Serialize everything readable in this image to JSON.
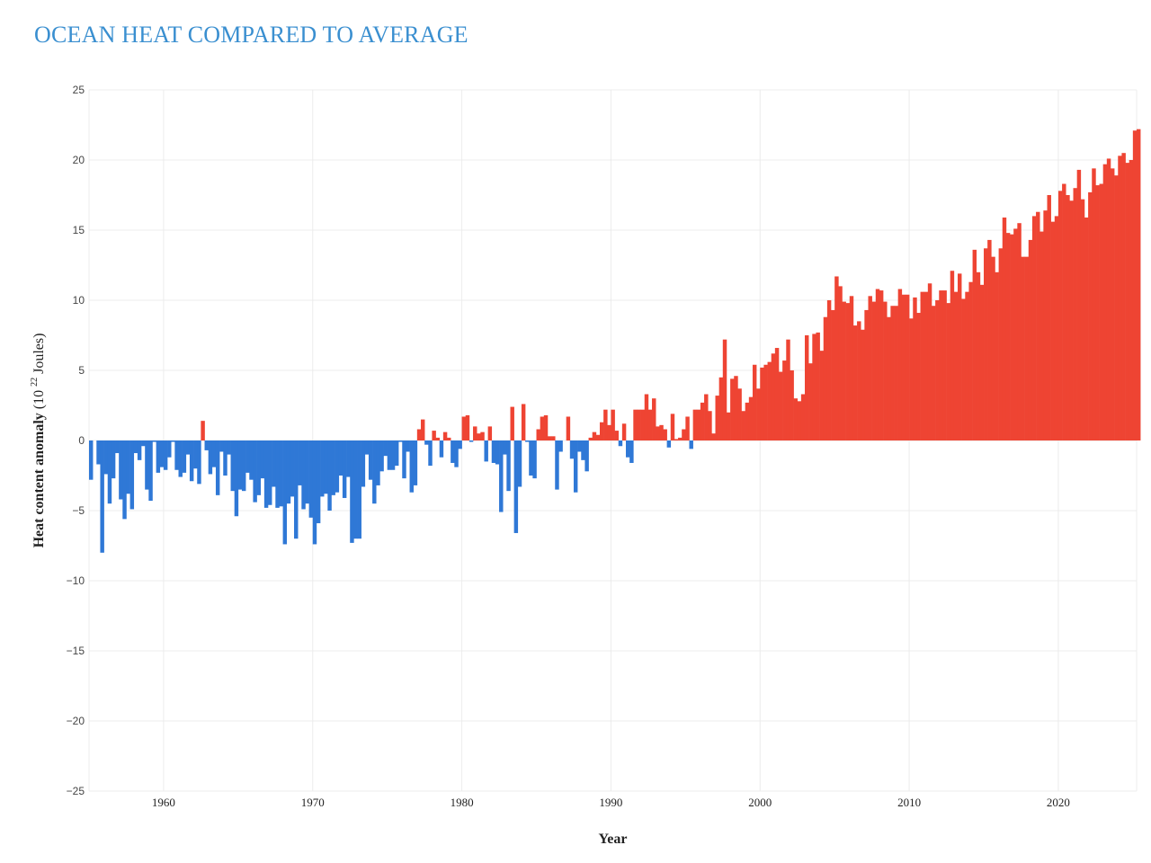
{
  "title": "OCEAN HEAT COMPARED TO AVERAGE",
  "chart_data": {
    "type": "bar",
    "title": "OCEAN HEAT COMPARED TO AVERAGE",
    "xlabel": "Year",
    "ylabel_bold": "Heat content anomaly",
    "ylabel_rest_prefix": "(10",
    "ylabel_superscript": "22",
    "ylabel_rest_suffix": " Joules)",
    "xlim": [
      1955.0,
      2025.25
    ],
    "ylim": [
      -25,
      25
    ],
    "yticks": [
      25,
      20,
      15,
      10,
      5,
      0,
      -5,
      -10,
      -15,
      -20,
      -25
    ],
    "ytick_labels": [
      "25",
      "20",
      "15",
      "10",
      "5",
      "0",
      "−5",
      "−10",
      "−15",
      "−20",
      "−25"
    ],
    "xticks": [
      1960,
      1970,
      1980,
      1990,
      2000,
      2010,
      2020
    ],
    "xtick_labels": [
      "1960",
      "1970",
      "1980",
      "1990",
      "2000",
      "2010",
      "2020"
    ],
    "grid": true,
    "colors": {
      "positive": "#ee4433",
      "negative": "#2f78d6",
      "title": "#3a8fd0",
      "grid": "#ececec"
    },
    "x_start": 1955.0,
    "x_step": 0.25,
    "values": [
      -2.8,
      0.0,
      -1.7,
      -8.0,
      -2.4,
      -4.5,
      -2.7,
      -0.9,
      -4.2,
      -5.6,
      -3.8,
      -4.9,
      -0.9,
      -1.4,
      -0.4,
      -3.5,
      -4.3,
      -0.1,
      -2.3,
      -1.9,
      -2.1,
      -1.2,
      -0.1,
      -2.1,
      -2.6,
      -2.3,
      -1.0,
      -2.9,
      -2.0,
      -3.1,
      1.4,
      -0.7,
      -2.4,
      -1.9,
      -3.9,
      -0.8,
      -2.5,
      -1.0,
      -3.6,
      -5.4,
      -3.5,
      -3.6,
      -2.3,
      -2.8,
      -4.4,
      -3.9,
      -2.7,
      -4.8,
      -4.6,
      -3.3,
      -4.8,
      -4.7,
      -7.4,
      -4.5,
      -4.0,
      -7.0,
      -3.2,
      -4.9,
      -4.5,
      -5.5,
      -7.4,
      -5.9,
      -4.0,
      -3.8,
      -5.0,
      -3.9,
      -3.7,
      -2.5,
      -4.1,
      -2.6,
      -7.3,
      -7.0,
      -7.0,
      -3.3,
      -1.0,
      -2.8,
      -4.5,
      -3.2,
      -2.2,
      -1.1,
      -2.1,
      -2.1,
      -1.8,
      -0.1,
      -2.7,
      -0.8,
      -3.7,
      -3.2,
      0.8,
      1.5,
      -0.3,
      -1.8,
      0.7,
      0.2,
      -1.2,
      0.6,
      0.2,
      -1.6,
      -1.9,
      -0.6,
      1.7,
      1.8,
      -0.1,
      1.0,
      0.5,
      0.6,
      -1.5,
      1.0,
      -1.6,
      -1.7,
      -5.1,
      -1.0,
      -3.6,
      2.4,
      -6.6,
      -3.3,
      2.6,
      -0.1,
      -2.5,
      -2.7,
      0.8,
      1.7,
      1.8,
      0.3,
      0.3,
      -3.5,
      -0.8,
      0.0,
      1.7,
      -1.3,
      -3.7,
      -0.8,
      -1.4,
      -2.2,
      0.2,
      0.6,
      0.4,
      1.3,
      2.2,
      1.1,
      2.2,
      0.7,
      -0.4,
      1.2,
      -1.2,
      -1.6,
      2.2,
      2.2,
      2.2,
      3.3,
      2.2,
      3.0,
      1.0,
      1.1,
      0.8,
      -0.5,
      1.9,
      0.1,
      0.2,
      0.8,
      1.7,
      -0.6,
      2.2,
      2.2,
      2.7,
      3.3,
      2.1,
      0.5,
      3.2,
      4.5,
      7.2,
      2.0,
      4.4,
      4.6,
      3.7,
      2.1,
      2.7,
      3.1,
      5.4,
      3.7,
      5.2,
      5.4,
      5.6,
      6.2,
      6.6,
      4.9,
      5.7,
      7.2,
      5.0,
      3.0,
      2.8,
      3.3,
      7.5,
      5.5,
      7.6,
      7.7,
      6.4,
      8.8,
      10.0,
      9.3,
      11.7,
      11.0,
      9.9,
      9.8,
      10.3,
      8.2,
      8.5,
      7.9,
      9.3,
      10.3,
      9.9,
      10.8,
      10.7,
      9.9,
      8.8,
      9.6,
      9.6,
      10.8,
      10.4,
      10.4,
      8.7,
      10.2,
      9.1,
      10.6,
      10.6,
      11.2,
      9.6,
      10.0,
      10.7,
      10.7,
      9.8,
      12.1,
      10.6,
      11.9,
      10.1,
      10.6,
      11.3,
      13.6,
      12.0,
      11.1,
      13.7,
      14.3,
      13.1,
      12.0,
      13.7,
      15.9,
      14.8,
      14.7,
      15.1,
      15.5,
      13.1,
      13.1,
      14.3,
      16.0,
      16.3,
      14.9,
      16.4,
      17.5,
      15.6,
      16.0,
      17.8,
      18.3,
      17.5,
      17.1,
      18.0,
      19.3,
      17.2,
      15.9,
      17.7,
      19.4,
      18.2,
      18.3,
      19.7,
      20.1,
      19.4,
      18.9,
      20.3,
      20.5,
      19.8,
      20.0,
      22.1,
      22.2
    ]
  }
}
